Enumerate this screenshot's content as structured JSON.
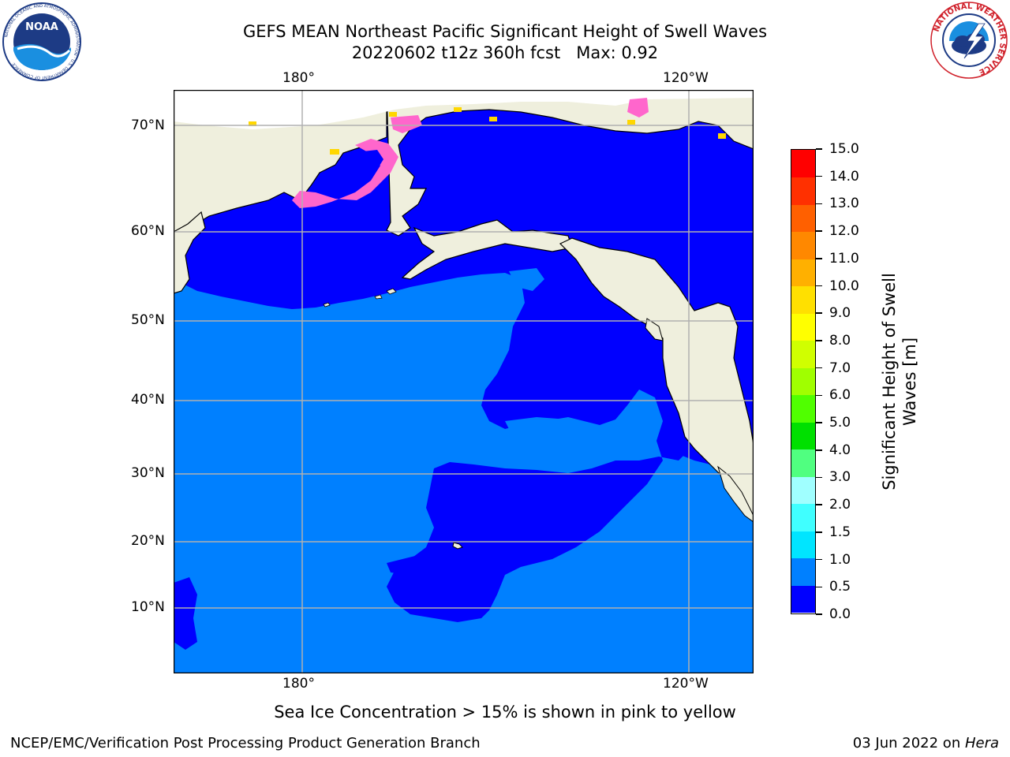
{
  "header": {
    "title_line1": "GEFS MEAN Northeast Pacific Significant Height of Swell Waves",
    "title_line2": "20220602 t12z 360h fcst   Max: 0.92"
  },
  "logos": {
    "noaa_text": "NOAA",
    "noaa_ring": "NATIONAL OCEANIC AND ATMOSPHERIC ADMINISTRATION · U.S. DEPARTMENT OF COMMERCE",
    "nws_ring": "NATIONAL WEATHER SERVICE"
  },
  "map": {
    "lon_labels": [
      "180°",
      "120°W"
    ],
    "lat_labels": [
      "70°N",
      "60°N",
      "50°N",
      "40°N",
      "30°N",
      "20°N",
      "10°N"
    ],
    "caption": "Sea Ice Concentration > 15% is shown in pink to yellow",
    "colors": {
      "land": "#efefdd",
      "swell_0_05": "#0000ff",
      "swell_05_1": "#0080ff",
      "ice_pink": "#ff66cc",
      "ice_yellow": "#ffd700",
      "grid": "#b0b0b0"
    }
  },
  "colorbar": {
    "label": "Significant Height of Swell Waves [m]",
    "label_line1": "Significant Height of Swell",
    "label_line2": "Waves [m]",
    "ticks": [
      "0.0",
      "0.5",
      "1.0",
      "1.5",
      "2.0",
      "3.0",
      "4.0",
      "5.0",
      "6.0",
      "7.0",
      "8.0",
      "9.0",
      "10.0",
      "11.0",
      "12.0",
      "13.0",
      "14.0",
      "15.0"
    ],
    "colors": [
      "#0000ff",
      "#0080ff",
      "#00e5ff",
      "#40ffff",
      "#a0ffff",
      "#50ff80",
      "#00e000",
      "#50ff00",
      "#a0ff00",
      "#d0ff00",
      "#ffff00",
      "#ffe000",
      "#ffb000",
      "#ff8800",
      "#ff6000",
      "#ff3000",
      "#ff0000"
    ]
  },
  "footer": {
    "left": "NCEP/EMC/Verification Post Processing Product Generation Branch",
    "right_prefix": "03 Jun 2022 on ",
    "right_host": "Hera"
  }
}
